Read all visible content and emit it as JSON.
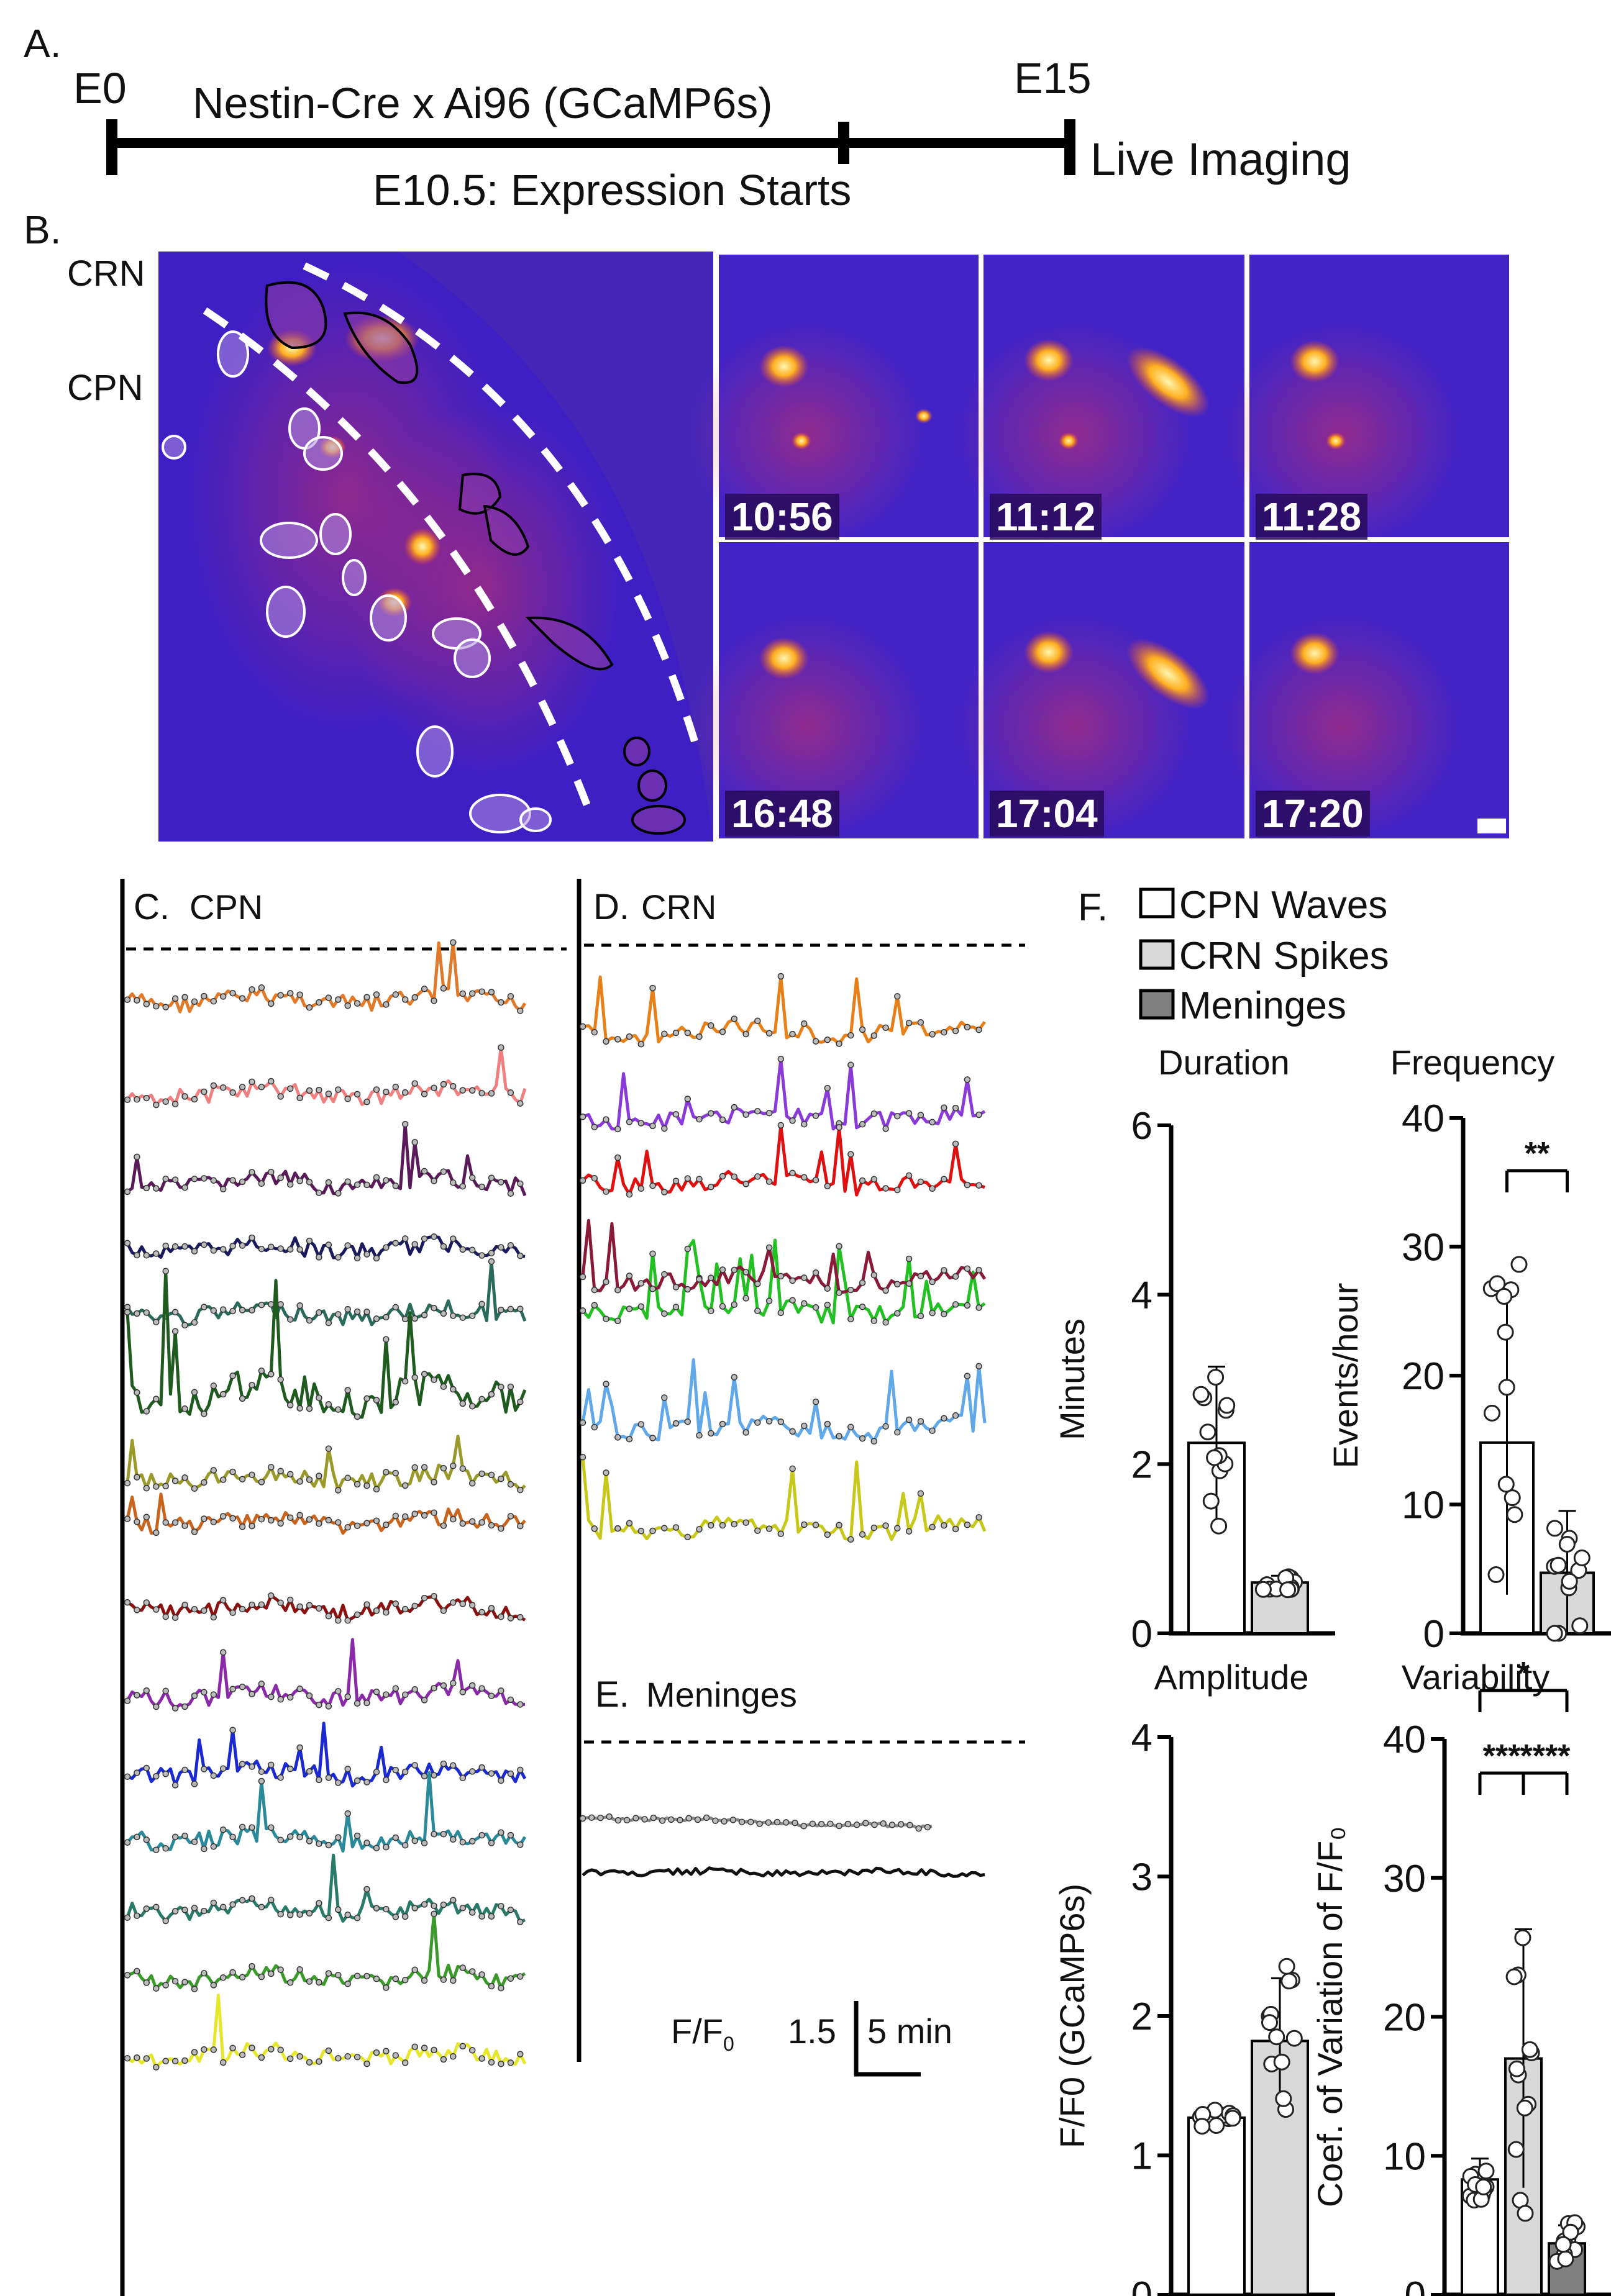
{
  "panel_labels": {
    "a": "A.",
    "b": "B.",
    "c": "C.",
    "d": "D.",
    "e": "E.",
    "f": "F."
  },
  "timeline": {
    "start": "E0",
    "end": "E15",
    "cross": "Nestin-Cre x Ai96 (GCaMP6s)",
    "mid_event": "E10.5: Expression Starts",
    "end_event": "Live Imaging"
  },
  "image_panel": {
    "crn_label": "CRN",
    "cpn_label": "CPN",
    "timestamps": [
      "10:56",
      "11:12",
      "11:28",
      "16:48",
      "17:04",
      "17:20"
    ]
  },
  "traces": {
    "c_title": "CPN",
    "d_title": "CRN",
    "e_title": "Meninges",
    "cpn_colors": [
      "#e07a2a",
      "#f08080",
      "#5a1a5a",
      "#1a1a5e",
      "#2a6a5a",
      "#1f5a1f",
      "#9a9a2a",
      "#c8641e",
      "#8b1010",
      "#8a2aa8",
      "#1a2ad0",
      "#2a8a9a",
      "#2a7a6a",
      "#3a9a2a",
      "#e6e62a"
    ],
    "crn_colors": [
      "#e8801a",
      "#8a3ad8",
      "#e01010",
      "#22c022",
      "#8a1a3a",
      "#60a8e8",
      "#c8c81a"
    ],
    "meninges_colors": [
      "#888888",
      "#111111"
    ],
    "scale_label": "F/F",
    "scale_sub": "0",
    "scale_value": "1.5",
    "scale_time": "5 min"
  },
  "legend": {
    "items": [
      {
        "label": "CPN Waves",
        "color": "#ffffff"
      },
      {
        "label": "CRN Spikes",
        "color": "#d9d9d9"
      },
      {
        "label": "Meninges",
        "color": "#808080"
      }
    ]
  },
  "chart_data": [
    {
      "type": "bar",
      "title": "Duration",
      "ylabel": "Minutes",
      "ylim": [
        0,
        6
      ],
      "yticks": [
        "0",
        "2",
        "4",
        "6"
      ],
      "categories": [
        "CPN Waves",
        "CRN Spikes"
      ],
      "values": [
        2.25,
        0.6
      ],
      "errors": [
        0.9,
        0.08
      ],
      "significance": []
    },
    {
      "type": "bar",
      "title": "Frequency",
      "ylabel": "Events/hour",
      "ylim": [
        0,
        40
      ],
      "yticks": [
        "0",
        "10",
        "20",
        "30",
        "40"
      ],
      "categories": [
        "CPN Waves",
        "CRN Spikes"
      ],
      "values": [
        14.8,
        4.7
      ],
      "errors": [
        11.8,
        4.8
      ],
      "significance": [
        {
          "text": "**",
          "from": 0,
          "to": 1
        }
      ]
    },
    {
      "type": "bar",
      "title": "Amplitude",
      "ylabel": "F/F0 (GCaMP6s)",
      "ylim": [
        0,
        4
      ],
      "yticks": [
        "0",
        "1",
        "2",
        "3",
        "4"
      ],
      "categories": [
        "CPN Waves",
        "CRN Spikes"
      ],
      "values": [
        1.27,
        1.82
      ],
      "errors": [
        0.06,
        0.45
      ],
      "significance": []
    },
    {
      "type": "bar",
      "title": "Variability",
      "ylabel": "Coef. of Variation of F/F₀",
      "ylim": [
        0,
        40
      ],
      "yticks": [
        "0",
        "10",
        "20",
        "30",
        "40"
      ],
      "categories": [
        "CPN Waves",
        "CRN Spikes",
        "Meninges"
      ],
      "values": [
        8.3,
        17.0,
        3.7
      ],
      "errors": [
        1.5,
        9.3,
        1.3
      ],
      "significance": [
        {
          "text": "***",
          "from": 0,
          "to": 1
        },
        {
          "text": "****",
          "from": 1,
          "to": 2
        },
        {
          "text": "*",
          "from": 0,
          "to": 2
        }
      ]
    }
  ]
}
